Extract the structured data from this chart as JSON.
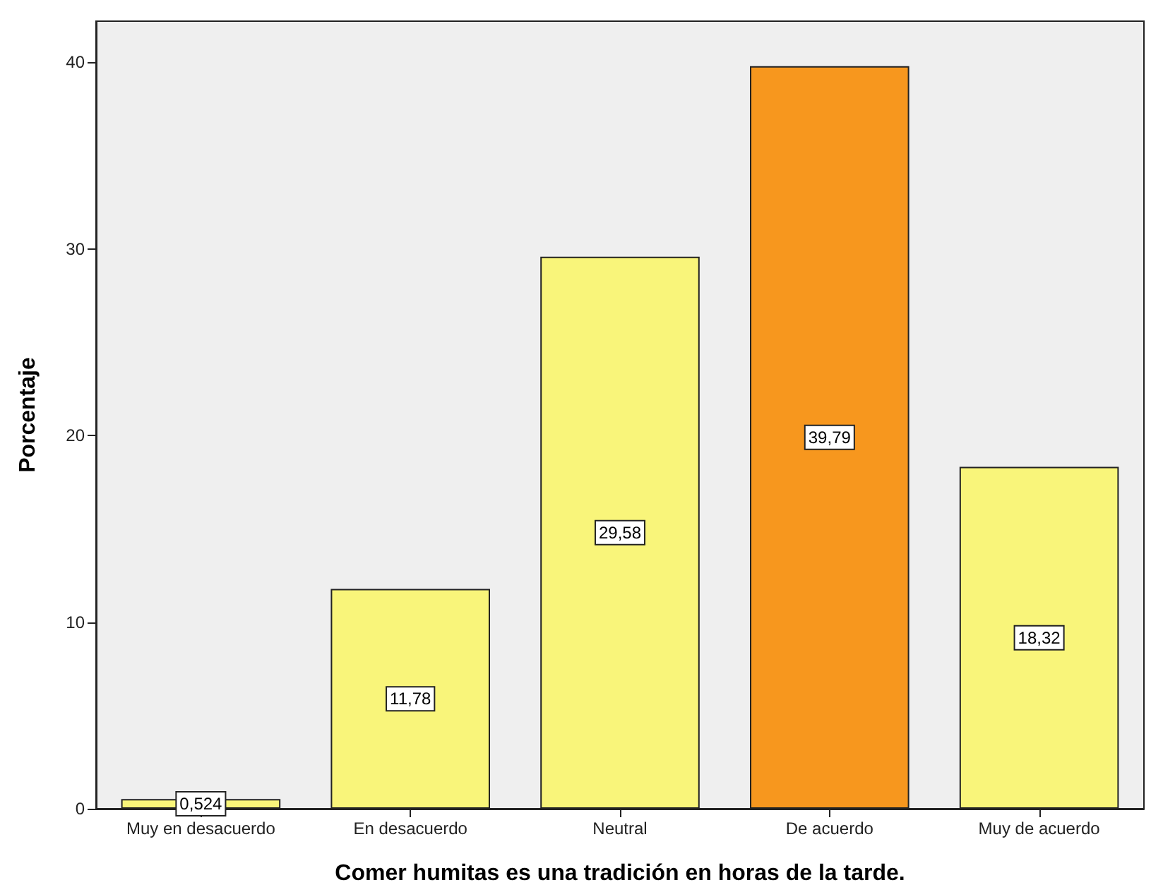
{
  "chart_data": {
    "type": "bar",
    "xlabel": "Comer humitas es una tradición en horas de la tarde.",
    "ylabel": "Porcentaje",
    "categories": [
      "Muy en desacuerdo",
      "En desacuerdo",
      "Neutral",
      "De acuerdo",
      "Muy de acuerdo"
    ],
    "values": [
      0.524,
      11.78,
      29.58,
      39.79,
      18.32
    ],
    "colors": [
      "#f9f57a",
      "#f9f57a",
      "#f9f57a",
      "#f7971e",
      "#f9f57a"
    ],
    "value_labels": [
      "0,524",
      "11,78",
      "29,58",
      "39,79",
      "18,32"
    ],
    "ylim": [
      0,
      42.2
    ],
    "yticks": [
      0,
      10,
      20,
      30,
      40
    ],
    "grid": false
  }
}
